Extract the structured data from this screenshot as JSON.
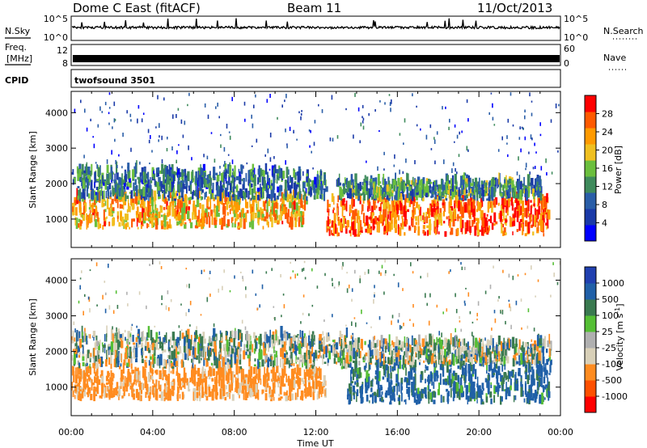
{
  "header": {
    "station": "Dome C East (fitACF)",
    "beam": "Beam 11",
    "date": "11/Oct/2013"
  },
  "top_panels": {
    "nsky_label": "N.Sky",
    "nsky_ticks": [
      "10^5",
      "10^0"
    ],
    "nsearch_label": "N.Search",
    "nsearch_ticks": [
      "10^5",
      "10^0"
    ],
    "freq_label": [
      "Freq.",
      "[MHz]"
    ],
    "freq_ticks": [
      "12",
      "8"
    ],
    "nave_label": "Nave",
    "nave_ticks": [
      "60",
      "0"
    ],
    "cpid_label": "CPID",
    "cpid_value": "twofsound 3501"
  },
  "colors": {
    "power": [
      "#0000ff",
      "#1a3aa8",
      "#2a5ea8",
      "#3f8b5c",
      "#6bbf3e",
      "#f0c020",
      "#ff9a00",
      "#ff5a00",
      "#ff0000"
    ],
    "velocity": [
      "#2040b0",
      "#2060a8",
      "#3a7a50",
      "#55bf35",
      "#b0b0b0",
      "#d8d0b8",
      "#ff8c20",
      "#ff5000",
      "#ff0000"
    ]
  },
  "chart_data": [
    {
      "type": "heatmap",
      "name": "power",
      "x": "Time UT",
      "xlim": [
        "00:00",
        "24:00"
      ],
      "xticks": [
        "00:00",
        "04:00",
        "08:00",
        "12:00",
        "16:00",
        "20:00",
        "00:00"
      ],
      "ylabel": "Slant Range [km]",
      "ylim": [
        200,
        4600
      ],
      "yticks": [
        "1000",
        "2000",
        "3000",
        "4000"
      ],
      "colorbar": {
        "label": "Power [dB]",
        "ticks": [
          "28",
          "24",
          "20",
          "16",
          "12",
          "8",
          "4"
        ],
        "range": [
          0,
          32
        ]
      },
      "features": [
        {
          "t_start_h": 0.0,
          "t_end_h": 11.5,
          "range_km": [
            700,
            1600
          ],
          "value_db": 22
        },
        {
          "t_start_h": 0.0,
          "t_end_h": 12.5,
          "range_km": [
            1500,
            2300
          ],
          "value_db": 10
        },
        {
          "t_start_h": 12.5,
          "t_end_h": 23.5,
          "range_km": [
            500,
            1500
          ],
          "value_db": 26
        },
        {
          "t_start_h": 13.0,
          "t_end_h": 23.0,
          "range_km": [
            1500,
            2000
          ],
          "value_db": 12
        }
      ]
    },
    {
      "type": "heatmap",
      "name": "velocity",
      "x": "Time UT",
      "xlabel": "Time UT",
      "xlim": [
        "00:00",
        "24:00"
      ],
      "xticks": [
        "00:00",
        "04:00",
        "08:00",
        "12:00",
        "16:00",
        "20:00",
        "00:00"
      ],
      "ylabel": "Slant Range [km]",
      "ylim": [
        200,
        4600
      ],
      "yticks": [
        "1000",
        "2000",
        "3000",
        "4000"
      ],
      "colorbar": {
        "label": "Velocity [m s-1]",
        "ticks": [
          "1000",
          "500",
          "100",
          "25",
          "-25",
          "-100",
          "-500",
          "-1000"
        ],
        "range": [
          -1000,
          1000
        ]
      },
      "features": [
        {
          "t_start_h": 0.0,
          "t_end_h": 12.5,
          "range_km": [
            600,
            1400
          ],
          "value_ms": -200
        },
        {
          "t_start_h": 0.0,
          "t_end_h": 13.5,
          "range_km": [
            1500,
            2400
          ],
          "value_ms": 0
        },
        {
          "t_start_h": 13.5,
          "t_end_h": 23.5,
          "range_km": [
            500,
            1600
          ],
          "value_ms": 150
        },
        {
          "t_start_h": 13.5,
          "t_end_h": 23.5,
          "range_km": [
            1600,
            2200
          ],
          "value_ms": 0
        }
      ]
    }
  ]
}
